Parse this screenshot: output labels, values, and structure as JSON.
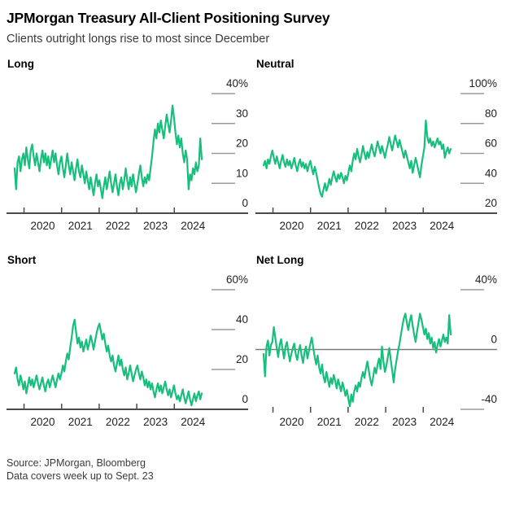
{
  "header": {
    "title": "JPMorgan Treasury All-Client Positioning Survey",
    "subtitle": "Clients outright longs rise to most since December"
  },
  "footer": {
    "source": "Source: JPMorgan, Bloomberg",
    "note": "Data covers week up to Sept. 23"
  },
  "colors": {
    "line": "#17be7c",
    "axis": "#4a4a4c",
    "tick_dash": "#9b9b9b",
    "zero_line": "#7c7c7c",
    "label_text": "#222222"
  },
  "chart_data": [
    {
      "type": "line",
      "title": "Long",
      "unit": "%",
      "x_start": 2019.75,
      "x_end": 2024.73,
      "x_ticks": [
        2020,
        2021,
        2022,
        2023,
        2024
      ],
      "ylim": [
        0,
        40
      ],
      "y_ticks": [
        40,
        30,
        20,
        10,
        0
      ],
      "bottom_axis": true,
      "zero_line": false,
      "values": [
        15,
        8,
        17,
        19,
        14,
        18,
        20,
        16,
        22,
        18,
        15,
        21,
        23,
        19,
        16,
        20,
        17,
        14,
        18,
        21,
        17,
        20,
        16,
        19,
        15,
        18,
        21,
        17,
        20,
        16,
        13,
        17,
        19,
        15,
        12,
        16,
        20,
        16,
        13,
        17,
        14,
        11,
        15,
        18,
        14,
        12,
        16,
        13,
        10,
        14,
        11,
        8,
        12,
        9,
        6,
        10,
        13,
        9,
        11,
        8,
        5,
        9,
        12,
        8,
        11,
        14,
        10,
        7,
        10,
        13,
        9,
        6,
        10,
        12,
        8,
        11,
        15,
        11,
        8,
        12,
        9,
        13,
        10,
        7,
        10,
        13,
        16,
        12,
        9,
        12,
        10,
        13,
        11,
        15,
        19,
        24,
        28,
        25,
        30,
        27,
        31,
        28,
        25,
        29,
        33,
        30,
        27,
        31,
        36,
        32,
        27,
        23,
        26,
        22,
        25,
        20,
        17,
        21,
        18,
        8,
        13,
        11,
        15,
        13,
        17,
        14,
        16,
        25,
        18
      ]
    },
    {
      "type": "line",
      "title": "Neutral",
      "unit": "%",
      "x_start": 2019.75,
      "x_end": 2024.73,
      "x_ticks": [
        2020,
        2021,
        2022,
        2023,
        2024
      ],
      "ylim": [
        20,
        100
      ],
      "y_ticks": [
        100,
        80,
        60,
        40,
        20
      ],
      "bottom_axis": true,
      "zero_line": false,
      "values": [
        52,
        55,
        50,
        56,
        53,
        58,
        62,
        57,
        53,
        58,
        54,
        50,
        55,
        59,
        54,
        51,
        56,
        52,
        55,
        50,
        53,
        57,
        52,
        48,
        53,
        56,
        51,
        54,
        50,
        53,
        48,
        52,
        55,
        50,
        46,
        51,
        47,
        42,
        37,
        33,
        31,
        36,
        40,
        35,
        38,
        43,
        39,
        44,
        48,
        44,
        41,
        46,
        43,
        47,
        44,
        40,
        45,
        42,
        47,
        52,
        48,
        55,
        60,
        56,
        63,
        58,
        54,
        59,
        65,
        60,
        56,
        61,
        57,
        62,
        66,
        61,
        58,
        63,
        68,
        64,
        60,
        65,
        61,
        57,
        62,
        66,
        71,
        66,
        62,
        67,
        72,
        68,
        64,
        69,
        65,
        61,
        57,
        62,
        58,
        54,
        50,
        55,
        47,
        52,
        57,
        53,
        48,
        44,
        52,
        58,
        64,
        82,
        71,
        67,
        70,
        65,
        68,
        64,
        67,
        70,
        66,
        68,
        63,
        66,
        57,
        61,
        64,
        60,
        63
      ]
    },
    {
      "type": "line",
      "title": "Short",
      "unit": "%",
      "x_start": 2019.75,
      "x_end": 2024.73,
      "x_ticks": [
        2020,
        2021,
        2022,
        2023,
        2024
      ],
      "ylim": [
        0,
        60
      ],
      "y_ticks": [
        60,
        40,
        20,
        0
      ],
      "bottom_axis": true,
      "zero_line": false,
      "values": [
        18,
        21,
        15,
        12,
        17,
        14,
        10,
        14,
        8,
        12,
        16,
        12,
        15,
        11,
        14,
        17,
        13,
        10,
        13,
        16,
        12,
        9,
        13,
        15,
        11,
        14,
        17,
        14,
        11,
        15,
        18,
        15,
        18,
        22,
        19,
        24,
        28,
        25,
        31,
        36,
        42,
        45,
        39,
        33,
        36,
        31,
        34,
        29,
        32,
        35,
        30,
        33,
        37,
        34,
        30,
        34,
        38,
        41,
        43,
        39,
        35,
        38,
        33,
        29,
        32,
        27,
        24,
        27,
        22,
        19,
        23,
        27,
        22,
        25,
        20,
        17,
        21,
        15,
        18,
        22,
        18,
        14,
        17,
        20,
        22,
        18,
        15,
        19,
        16,
        12,
        15,
        11,
        14,
        10,
        13,
        9,
        6,
        10,
        13,
        9,
        12,
        8,
        11,
        14,
        10,
        7,
        10,
        6,
        9,
        12,
        8,
        5,
        7,
        4,
        7,
        10,
        6,
        3,
        6,
        9,
        5,
        2,
        5,
        8,
        4,
        7,
        9,
        5,
        8
      ]
    },
    {
      "type": "line",
      "title": "Net Long",
      "unit": "%",
      "x_start": 2019.75,
      "x_end": 2024.73,
      "x_ticks": [
        2020,
        2021,
        2022,
        2023,
        2024
      ],
      "ylim": [
        -40,
        40
      ],
      "y_ticks": [
        40,
        0,
        -40
      ],
      "bottom_axis": false,
      "zero_line": true,
      "values": [
        -3,
        -18,
        2,
        6,
        -4,
        3,
        5,
        15,
        8,
        1,
        -5,
        3,
        7,
        0,
        -6,
        2,
        5,
        -2,
        -8,
        -3,
        1,
        4,
        -3,
        -7,
        -1,
        3,
        -4,
        -9,
        -2,
        2,
        -6,
        -1,
        4,
        8,
        1,
        -5,
        -10,
        -4,
        -12,
        -16,
        -10,
        -18,
        -22,
        -15,
        -20,
        -25,
        -19,
        -23,
        -17,
        -21,
        -26,
        -20,
        -24,
        -28,
        -22,
        -26,
        -31,
        -27,
        -33,
        -38,
        -30,
        -35,
        -28,
        -24,
        -28,
        -22,
        -25,
        -19,
        -15,
        -19,
        -13,
        -8,
        -14,
        -20,
        -24,
        -18,
        -12,
        -16,
        -10,
        -6,
        -13,
        2,
        -8,
        -15,
        -11,
        -5,
        1,
        -7,
        -14,
        -22,
        -13,
        -7,
        -1,
        4,
        10,
        16,
        21,
        24,
        18,
        13,
        19,
        23,
        16,
        10,
        5,
        12,
        18,
        24,
        20,
        15,
        10,
        14,
        7,
        11,
        4,
        8,
        1,
        5,
        -2,
        3,
        7,
        2,
        6,
        10,
        5,
        8,
        4,
        23,
        10
      ]
    }
  ]
}
